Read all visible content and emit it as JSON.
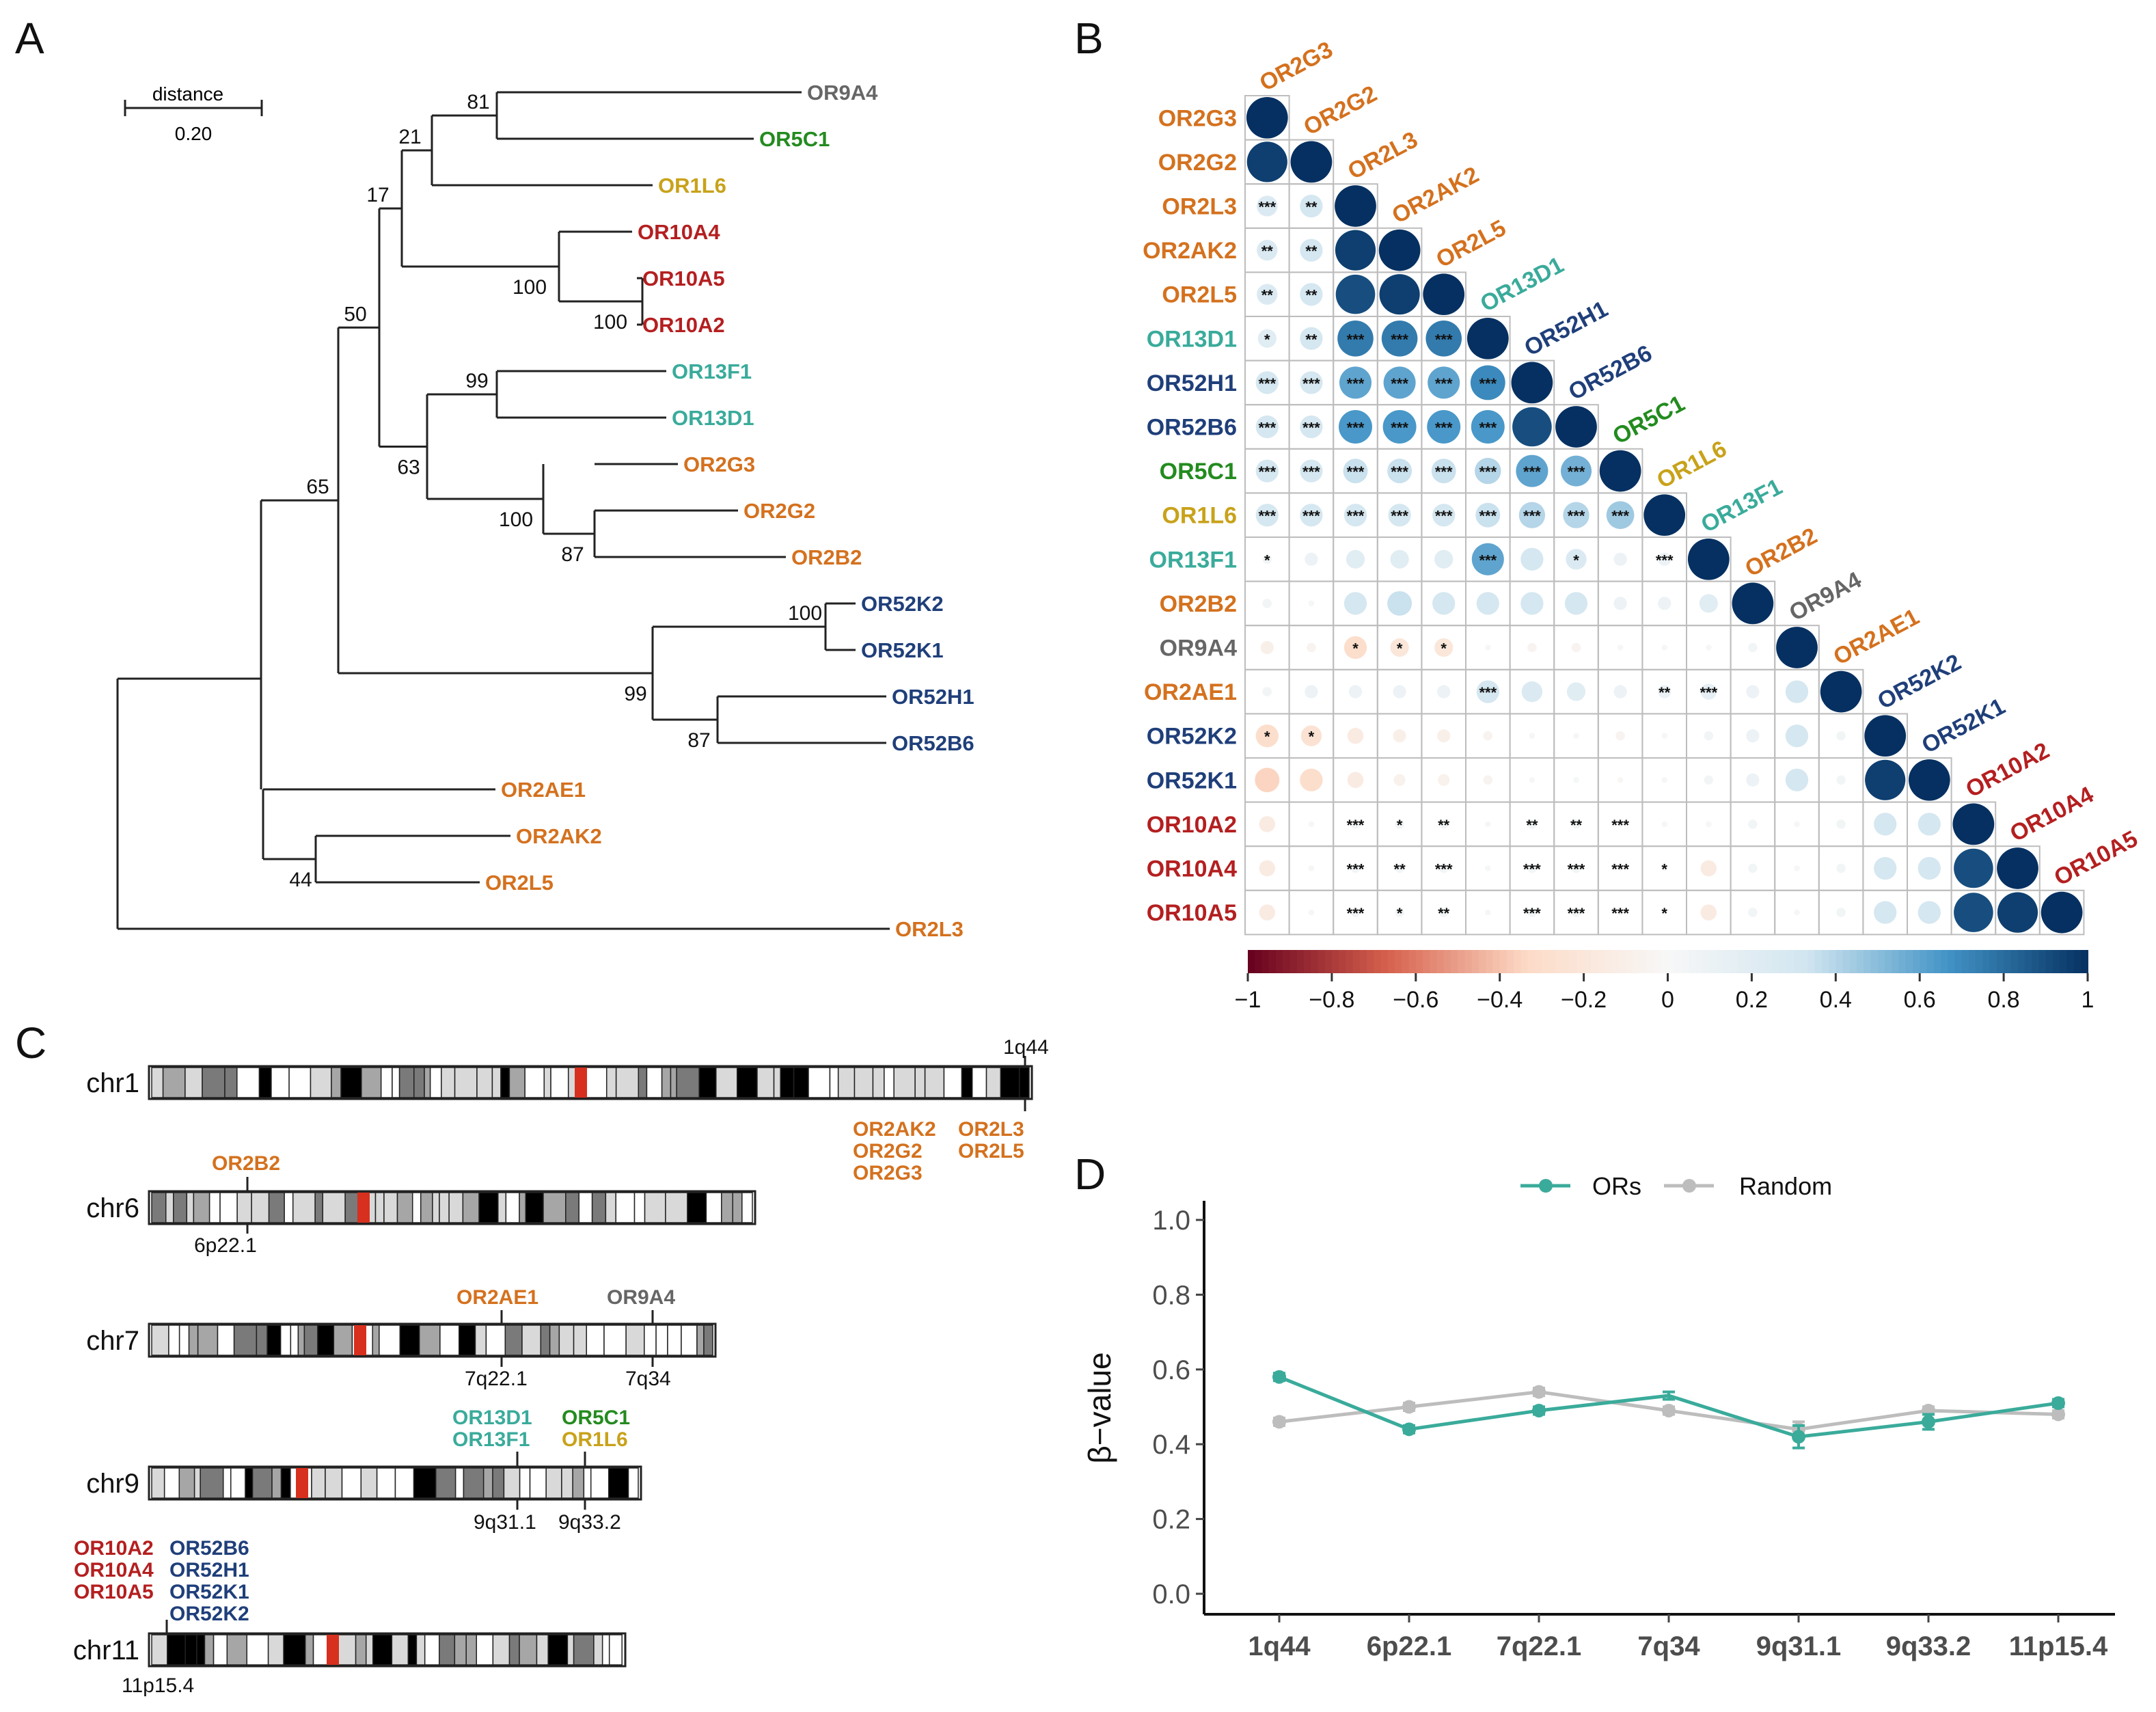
{
  "colors": {
    "OR2": "#d4711e",
    "OR10": "#b41f20",
    "OR52": "#1f3f7a",
    "OR13": "#3aab9b",
    "OR5": "#238b1f",
    "OR1": "#c8a21a",
    "OR9": "#666666",
    "ors_line": "#3aab9b",
    "random_line": "#bdbdbd"
  },
  "panel_a": {
    "letter": "A",
    "scale_label": "distance",
    "scale_value": "0.20",
    "bootstrap": [
      "81",
      "21",
      "17",
      "100",
      "100",
      "50",
      "99",
      "63",
      "100",
      "87",
      "65",
      "100",
      "99",
      "87",
      "44"
    ],
    "leaves": [
      {
        "name": "OR9A4",
        "family": "OR9"
      },
      {
        "name": "OR5C1",
        "family": "OR5"
      },
      {
        "name": "OR1L6",
        "family": "OR1"
      },
      {
        "name": "OR10A4",
        "family": "OR10"
      },
      {
        "name": "OR10A5",
        "family": "OR10"
      },
      {
        "name": "OR10A2",
        "family": "OR10"
      },
      {
        "name": "OR13F1",
        "family": "OR13"
      },
      {
        "name": "OR13D1",
        "family": "OR13"
      },
      {
        "name": "OR2G3",
        "family": "OR2"
      },
      {
        "name": "OR2G2",
        "family": "OR2"
      },
      {
        "name": "OR2B2",
        "family": "OR2"
      },
      {
        "name": "OR52K2",
        "family": "OR52"
      },
      {
        "name": "OR52K1",
        "family": "OR52"
      },
      {
        "name": "OR52H1",
        "family": "OR52"
      },
      {
        "name": "OR52B6",
        "family": "OR52"
      },
      {
        "name": "OR2AE1",
        "family": "OR2"
      },
      {
        "name": "OR2AK2",
        "family": "OR2"
      },
      {
        "name": "OR2L5",
        "family": "OR2"
      },
      {
        "name": "OR2L3",
        "family": "OR2"
      }
    ]
  },
  "panel_b": {
    "letter": "B",
    "colorbar_ticks": [
      "−1",
      "−0.8",
      "−0.6",
      "−0.4",
      "−0.2",
      "0",
      "0.2",
      "0.4",
      "0.6",
      "0.8",
      "1"
    ]
  },
  "panel_c": {
    "letter": "C",
    "chromosomes": [
      {
        "name": "chr1",
        "band": "1q44",
        "genes": [
          "OR2AK2",
          "OR2G2",
          "OR2G3",
          "OR2L3",
          "OR2L5"
        ]
      },
      {
        "name": "chr6",
        "band": "6p22.1",
        "genes": [
          "OR2B2"
        ]
      },
      {
        "name": "chr7",
        "bands": [
          "7q22.1",
          "7q34"
        ],
        "genes": [
          "OR2AE1",
          "OR9A4"
        ]
      },
      {
        "name": "chr9",
        "bands": [
          "9q31.1",
          "9q33.2"
        ],
        "genes": [
          "OR13D1",
          "OR13F1",
          "OR5C1",
          "OR1L6"
        ]
      },
      {
        "name": "chr11",
        "band": "11p15.4",
        "genes": [
          "OR10A2",
          "OR10A4",
          "OR10A5",
          "OR52B6",
          "OR52H1",
          "OR52K1",
          "OR52K2"
        ]
      }
    ]
  },
  "panel_d": {
    "letter": "D",
    "legend": [
      "ORs",
      "Random"
    ]
  },
  "chart_data": [
    {
      "type": "heatmap",
      "title": "",
      "genes": [
        "OR2G3",
        "OR2G2",
        "OR2L3",
        "OR2AK2",
        "OR2L5",
        "OR13D1",
        "OR52H1",
        "OR52B6",
        "OR5C1",
        "OR1L6",
        "OR13F1",
        "OR2B2",
        "OR9A4",
        "OR2AE1",
        "OR52K2",
        "OR52K1",
        "OR10A2",
        "OR10A4",
        "OR10A5"
      ],
      "gene_families": [
        "OR2",
        "OR2",
        "OR2",
        "OR2",
        "OR2",
        "OR13",
        "OR52",
        "OR52",
        "OR5",
        "OR1",
        "OR13",
        "OR2",
        "OR9",
        "OR2",
        "OR52",
        "OR52",
        "OR10",
        "OR10",
        "OR10"
      ],
      "correlation_lower": [
        [
          1
        ],
        [
          0.95,
          1
        ],
        [
          0.25,
          0.3,
          1
        ],
        [
          0.25,
          0.3,
          0.95,
          1
        ],
        [
          0.25,
          0.3,
          0.9,
          0.95,
          1
        ],
        [
          0.2,
          0.3,
          0.75,
          0.75,
          0.75,
          1
        ],
        [
          0.3,
          0.3,
          0.6,
          0.6,
          0.6,
          0.7,
          1
        ],
        [
          0.3,
          0.3,
          0.65,
          0.65,
          0.65,
          0.65,
          0.9,
          1
        ],
        [
          0.3,
          0.3,
          0.35,
          0.35,
          0.35,
          0.4,
          0.6,
          0.55,
          1
        ],
        [
          0.3,
          0.3,
          0.3,
          0.3,
          0.3,
          0.35,
          0.4,
          0.4,
          0.45,
          1
        ],
        [
          0.05,
          0.1,
          0.2,
          0.2,
          0.2,
          0.6,
          0.3,
          0.25,
          0.1,
          0.1,
          1
        ],
        [
          0.05,
          0.02,
          0.3,
          0.35,
          0.3,
          0.3,
          0.3,
          0.3,
          0.1,
          0.1,
          0.2,
          1
        ],
        [
          -0.1,
          -0.05,
          -0.3,
          -0.2,
          -0.2,
          -0.02,
          -0.05,
          -0.05,
          0.02,
          -0.02,
          0.02,
          0.05,
          1
        ],
        [
          0.05,
          0.1,
          0.1,
          0.1,
          0.1,
          0.3,
          0.25,
          0.2,
          0.1,
          0.1,
          0.15,
          0.1,
          0.3,
          1
        ],
        [
          -0.3,
          -0.25,
          -0.15,
          -0.1,
          -0.1,
          -0.05,
          0.02,
          0.02,
          -0.05,
          0.02,
          0.05,
          0.1,
          0.3,
          0.05,
          1
        ],
        [
          -0.35,
          -0.3,
          -0.15,
          -0.08,
          -0.08,
          -0.05,
          0.02,
          0.02,
          -0.02,
          0.02,
          0.05,
          0.1,
          0.3,
          0.05,
          0.95,
          1
        ],
        [
          -0.15,
          0.02,
          0.05,
          0.05,
          0.05,
          0.02,
          0.05,
          0.05,
          0.02,
          0.02,
          0.02,
          0.05,
          0.02,
          0.05,
          0.3,
          0.3,
          1
        ],
        [
          -0.15,
          -0.02,
          0.05,
          0.05,
          0.05,
          0.02,
          0.05,
          0.05,
          0.02,
          0.02,
          -0.15,
          0.05,
          0.02,
          0.05,
          0.3,
          0.3,
          0.9,
          1
        ],
        [
          -0.15,
          -0.02,
          0.05,
          0.05,
          0.05,
          0.02,
          0.05,
          0.05,
          0.02,
          0.02,
          -0.15,
          0.05,
          0.02,
          0.05,
          0.3,
          0.3,
          0.9,
          0.95,
          1
        ]
      ],
      "significance_lower": [
        [
          ""
        ],
        [
          "",
          ""
        ],
        [
          "***",
          "**",
          ""
        ],
        [
          "**",
          "**",
          "",
          ""
        ],
        [
          "**",
          "**",
          "",
          "",
          ""
        ],
        [
          "*",
          "**",
          "***",
          "***",
          "***",
          ""
        ],
        [
          "***",
          "***",
          "***",
          "***",
          "***",
          "***",
          ""
        ],
        [
          "***",
          "***",
          "***",
          "***",
          "***",
          "***",
          "",
          ""
        ],
        [
          "***",
          "***",
          "***",
          "***",
          "***",
          "***",
          "***",
          "***",
          ""
        ],
        [
          "***",
          "***",
          "***",
          "***",
          "***",
          "***",
          "***",
          "***",
          "***",
          ""
        ],
        [
          "*",
          "",
          "",
          "",
          "",
          "***",
          "",
          "*",
          "",
          "***",
          ""
        ],
        [
          "",
          "",
          "",
          "",
          "",
          "",
          "",
          "",
          "",
          "",
          "",
          ""
        ],
        [
          "",
          "",
          "*",
          "*",
          "*",
          "",
          "",
          "",
          "",
          "",
          "",
          "",
          ""
        ],
        [
          "",
          "",
          "",
          "",
          "",
          "***",
          "",
          "",
          "",
          "**",
          "***",
          "",
          "",
          ""
        ],
        [
          "*",
          "*",
          "",
          "",
          "",
          "",
          "",
          "",
          "",
          "",
          "",
          "",
          "",
          "",
          ""
        ],
        [
          "",
          "",
          "",
          "",
          "",
          "",
          "",
          "",
          "",
          "",
          "",
          "",
          "",
          "",
          "",
          ""
        ],
        [
          "",
          "",
          "***",
          "*",
          "**",
          "",
          "**",
          "**",
          "***",
          "",
          "",
          "",
          "",
          "",
          "",
          "",
          ""
        ],
        [
          "",
          "",
          "***",
          "**",
          "***",
          "",
          "***",
          "***",
          "***",
          "*",
          "",
          "",
          "",
          "",
          "",
          "",
          "",
          ""
        ],
        [
          "",
          "",
          "***",
          "*",
          "**",
          "",
          "***",
          "***",
          "***",
          "*",
          "",
          "",
          "",
          "",
          "",
          "",
          "",
          "",
          ""
        ]
      ],
      "colorbar_range": [
        -1,
        1
      ]
    },
    {
      "type": "line",
      "title": "",
      "xlabel": "",
      "ylabel": "β−value",
      "categories": [
        "1q44",
        "6p22.1",
        "7q22.1",
        "7q34",
        "9q31.1",
        "9q33.2",
        "11p15.4"
      ],
      "yticks": [
        "0.0",
        "0.2",
        "0.4",
        "0.6",
        "0.8",
        "1.0"
      ],
      "ylim": [
        0,
        1.0
      ],
      "legend_position": "top",
      "series": [
        {
          "name": "ORs",
          "values": [
            0.58,
            0.44,
            0.49,
            0.53,
            0.42,
            0.46,
            0.51
          ],
          "errors": [
            0.01,
            0.01,
            0.01,
            0.01,
            0.03,
            0.02,
            0.01
          ],
          "markers": [
            true,
            true,
            true,
            false,
            true,
            true,
            true
          ]
        },
        {
          "name": "Random",
          "values": [
            0.46,
            0.5,
            0.54,
            0.49,
            0.44,
            0.49,
            0.48
          ],
          "errors": [
            0.01,
            0.01,
            0.01,
            0.01,
            0.02,
            0.01,
            0.01
          ],
          "markers": [
            true,
            true,
            true,
            true,
            true,
            true,
            true
          ]
        }
      ]
    }
  ]
}
